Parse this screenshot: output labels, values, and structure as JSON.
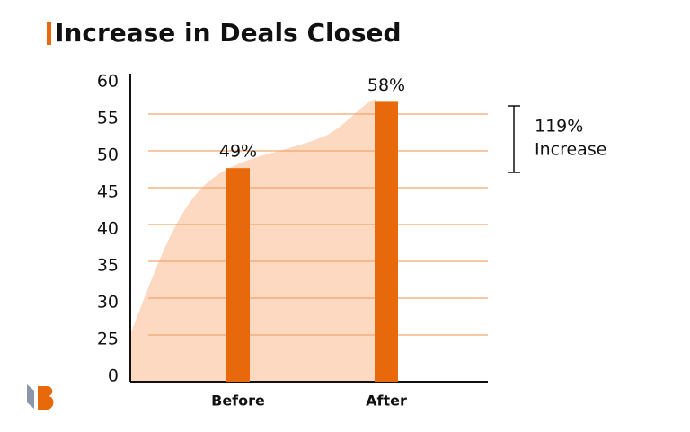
{
  "chart_data": {
    "type": "bar",
    "title": "Increase in Deals Closed",
    "categories": [
      "Before",
      "After"
    ],
    "values": [
      49,
      58
    ],
    "value_labels": [
      "49%",
      "58%"
    ],
    "color": "#e8690b",
    "ylim": [
      0,
      60
    ],
    "yticks": [
      0,
      25,
      30,
      35,
      40,
      45,
      50,
      55,
      60
    ],
    "grid": true,
    "annotations": [
      "119%",
      "Increase"
    ]
  }
}
